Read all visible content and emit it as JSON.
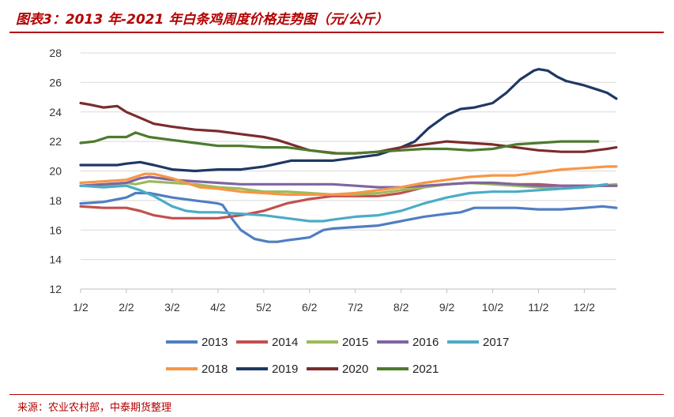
{
  "title": "图表3：2013 年-2021 年白条鸡周度价格走势图（元/公斤）",
  "source": "来源：农业农村部，中泰期货整理",
  "chart_data": {
    "type": "line",
    "title": "图表3：2013 年-2021 年白条鸡周度价格走势图（元/公斤）",
    "xlabel": "",
    "ylabel": "",
    "ylim": [
      12,
      28
    ],
    "yticks": [
      "12",
      "14",
      "16",
      "18",
      "20",
      "22",
      "24",
      "26",
      "28"
    ],
    "xticks": [
      "1/2",
      "2/2",
      "3/2",
      "4/2",
      "5/2",
      "6/2",
      "7/2",
      "8/2",
      "9/2",
      "10/2",
      "11/2",
      "12/2"
    ],
    "x_range": [
      1,
      12.7
    ],
    "grid": true,
    "legend": "bottom",
    "series": [
      {
        "name": "2013",
        "color": "#4f7ec2",
        "x": [
          1,
          1.5,
          2,
          2.2,
          2.5,
          3,
          3.5,
          4,
          4.1,
          4.3,
          4.5,
          4.8,
          5.1,
          5.3,
          5.5,
          6,
          6.3,
          6.5,
          7,
          7.5,
          8,
          8.5,
          9,
          9.3,
          9.6,
          10,
          10.5,
          11,
          11.5,
          12,
          12.4,
          12.7
        ],
        "y": [
          17.8,
          17.9,
          18.2,
          18.5,
          18.5,
          18.2,
          18.0,
          17.8,
          17.7,
          16.8,
          16.0,
          15.4,
          15.2,
          15.2,
          15.3,
          15.5,
          16.0,
          16.1,
          16.2,
          16.3,
          16.6,
          16.9,
          17.1,
          17.2,
          17.5,
          17.5,
          17.5,
          17.4,
          17.4,
          17.5,
          17.6,
          17.5
        ]
      },
      {
        "name": "2014",
        "color": "#c1504d",
        "x": [
          1,
          1.5,
          2,
          2.3,
          2.6,
          3,
          3.5,
          4,
          4.5,
          5,
          5.5,
          6,
          6.5,
          7,
          7.5,
          8,
          8.5,
          9,
          9.5,
          10,
          10.5,
          11,
          11.5,
          12,
          12.7
        ],
        "y": [
          17.6,
          17.5,
          17.5,
          17.3,
          17.0,
          16.8,
          16.8,
          16.8,
          17.0,
          17.3,
          17.8,
          18.1,
          18.3,
          18.3,
          18.3,
          18.5,
          18.9,
          19.1,
          19.2,
          19.2,
          19.1,
          19.1,
          19.0,
          19.0,
          19.0
        ]
      },
      {
        "name": "2015",
        "color": "#9bbb59",
        "x": [
          1,
          1.5,
          2,
          2.2,
          2.5,
          3,
          3.5,
          4,
          4.5,
          5,
          5.5,
          6,
          6.5,
          7,
          7.5,
          8,
          8.5,
          9,
          9.5,
          10,
          10.5,
          11,
          11.5,
          12,
          12.7
        ],
        "y": [
          19.0,
          19.0,
          19.2,
          19.1,
          19.3,
          19.2,
          19.1,
          18.9,
          18.8,
          18.6,
          18.6,
          18.5,
          18.4,
          18.4,
          18.5,
          18.7,
          18.9,
          19.1,
          19.2,
          19.1,
          19.0,
          18.9,
          18.8,
          18.9,
          19.1
        ]
      },
      {
        "name": "2016",
        "color": "#8064a2",
        "x": [
          1,
          1.5,
          2,
          2.3,
          2.5,
          3,
          3.5,
          4,
          4.5,
          5,
          5.5,
          6,
          6.5,
          7,
          7.5,
          8,
          8.5,
          9,
          9.5,
          10,
          10.5,
          11,
          11.5,
          12,
          12.7
        ],
        "y": [
          19.0,
          19.1,
          19.2,
          19.5,
          19.6,
          19.4,
          19.3,
          19.2,
          19.1,
          19.1,
          19.1,
          19.1,
          19.1,
          19.0,
          18.9,
          18.9,
          19.0,
          19.1,
          19.2,
          19.2,
          19.1,
          19.0,
          19.0,
          19.0,
          19.0
        ]
      },
      {
        "name": "2017",
        "color": "#4bacc6",
        "x": [
          1,
          1.5,
          2,
          2.3,
          2.6,
          3,
          3.3,
          3.6,
          4,
          4.5,
          5,
          5.5,
          6,
          6.3,
          6.5,
          7,
          7.5,
          8,
          8.5,
          9,
          9.5,
          10,
          10.5,
          11,
          11.5,
          12,
          12.5
        ],
        "y": [
          19.0,
          18.9,
          19.0,
          18.7,
          18.3,
          17.6,
          17.3,
          17.2,
          17.2,
          17.1,
          17.0,
          16.8,
          16.6,
          16.6,
          16.7,
          16.9,
          17.0,
          17.3,
          17.8,
          18.2,
          18.5,
          18.6,
          18.6,
          18.7,
          18.8,
          18.9,
          19.1
        ]
      },
      {
        "name": "2018",
        "color": "#f79646",
        "x": [
          1,
          1.5,
          2,
          2.4,
          2.6,
          3,
          3.3,
          3.6,
          4,
          4.5,
          5,
          5.5,
          6,
          6.5,
          7,
          7.5,
          8,
          8.5,
          9,
          9.5,
          10,
          10.5,
          11,
          11.5,
          12,
          12.5,
          12.7
        ],
        "y": [
          19.2,
          19.3,
          19.4,
          19.8,
          19.8,
          19.5,
          19.2,
          18.9,
          18.8,
          18.6,
          18.5,
          18.4,
          18.4,
          18.4,
          18.5,
          18.7,
          18.9,
          19.2,
          19.4,
          19.6,
          19.7,
          19.7,
          19.9,
          20.1,
          20.2,
          20.3,
          20.3
        ]
      },
      {
        "name": "2019",
        "color": "#1f3864",
        "x": [
          1,
          1.5,
          1.8,
          2,
          2.3,
          2.6,
          3,
          3.5,
          4,
          4.5,
          5,
          5.3,
          5.6,
          6,
          6.5,
          7,
          7.5,
          8,
          8.3,
          8.6,
          9,
          9.3,
          9.6,
          10,
          10.3,
          10.6,
          10.9,
          11,
          11.2,
          11.4,
          11.6,
          12,
          12.3,
          12.5,
          12.7
        ],
        "y": [
          20.4,
          20.4,
          20.4,
          20.5,
          20.6,
          20.4,
          20.1,
          20.0,
          20.1,
          20.1,
          20.3,
          20.5,
          20.7,
          20.7,
          20.7,
          20.9,
          21.1,
          21.6,
          22.0,
          22.9,
          23.8,
          24.2,
          24.3,
          24.6,
          25.3,
          26.2,
          26.8,
          26.9,
          26.8,
          26.4,
          26.1,
          25.8,
          25.5,
          25.3,
          24.9
        ]
      },
      {
        "name": "2020",
        "color": "#7b2c2c",
        "x": [
          1,
          1.2,
          1.5,
          1.8,
          2,
          2.3,
          2.6,
          3,
          3.5,
          4,
          4.5,
          5,
          5.3,
          5.6,
          6,
          6.3,
          6.6,
          7,
          7.5,
          8,
          8.5,
          9,
          9.5,
          10,
          10.5,
          11,
          11.5,
          12,
          12.5,
          12.7
        ],
        "y": [
          24.6,
          24.5,
          24.3,
          24.4,
          24.0,
          23.6,
          23.2,
          23.0,
          22.8,
          22.7,
          22.5,
          22.3,
          22.1,
          21.8,
          21.4,
          21.3,
          21.2,
          21.2,
          21.3,
          21.6,
          21.8,
          22.0,
          21.9,
          21.8,
          21.6,
          21.4,
          21.3,
          21.3,
          21.5,
          21.6
        ]
      },
      {
        "name": "2021",
        "color": "#4e7a2e",
        "x": [
          1,
          1.3,
          1.6,
          2,
          2.2,
          2.5,
          3,
          3.5,
          4,
          4.5,
          5,
          5.5,
          6,
          6.5,
          7,
          7.5,
          8,
          8.5,
          9,
          9.5,
          10,
          10.5,
          11,
          11.5,
          12,
          12.3
        ],
        "y": [
          21.9,
          22.0,
          22.3,
          22.3,
          22.6,
          22.3,
          22.1,
          21.9,
          21.7,
          21.7,
          21.6,
          21.6,
          21.4,
          21.2,
          21.2,
          21.3,
          21.4,
          21.5,
          21.5,
          21.4,
          21.5,
          21.8,
          21.9,
          22.0,
          22.0,
          22.0
        ]
      }
    ]
  }
}
